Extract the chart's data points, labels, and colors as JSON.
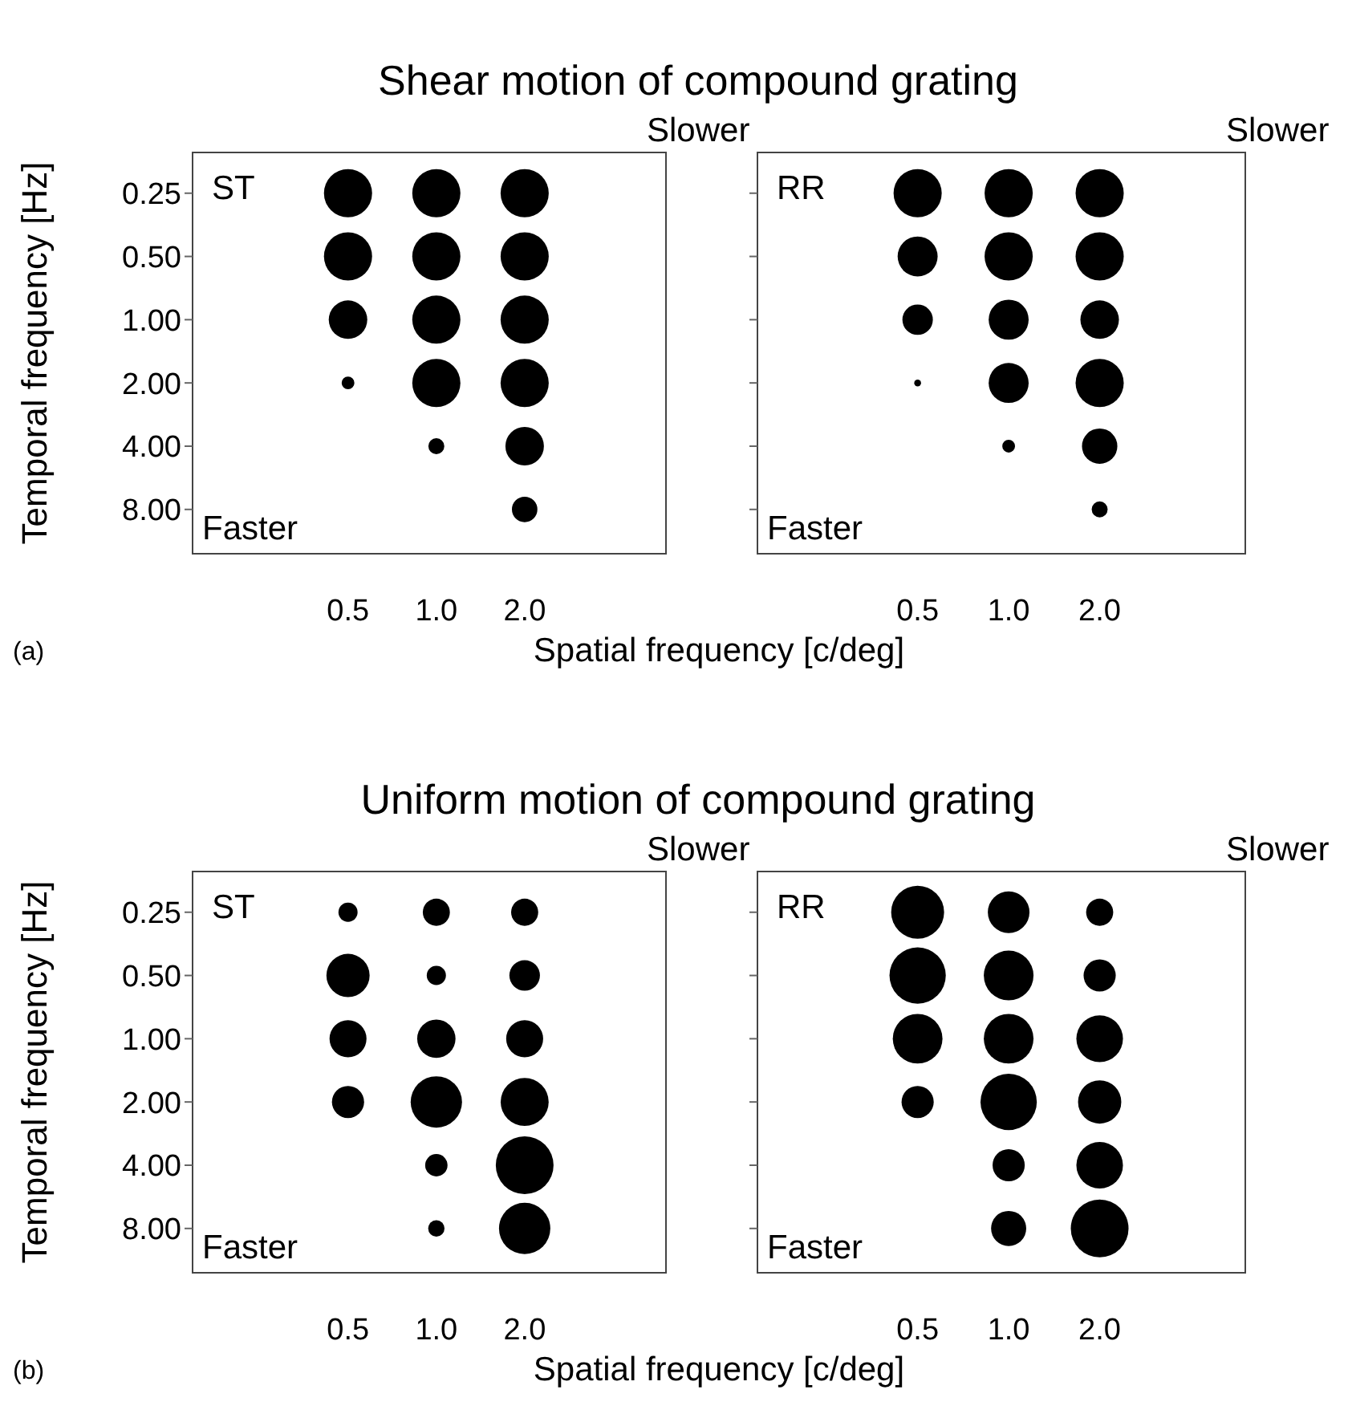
{
  "chart_data": [
    {
      "type": "bubble",
      "title": "Shear motion of compound grating",
      "xlabel": "Spatial frequency [c/deg]",
      "ylabel": "Temporal frequency [Hz]",
      "annotations": [
        "ST",
        "Slower",
        "Faster",
        "(a)"
      ],
      "categories": [
        "0.5",
        "1.0",
        "2.0"
      ],
      "log": "y",
      "ylim": [
        13,
        0.16
      ],
      "yticks": [
        {
          "value": 0.25,
          "label": "0.25"
        },
        {
          "value": 0.5,
          "label": "0.50"
        },
        {
          "value": 1,
          "label": "1.00"
        },
        {
          "value": 2,
          "label": "2.00"
        },
        {
          "value": 4,
          "label": "4.00"
        },
        {
          "value": 8,
          "label": "8.00"
        }
      ],
      "series": [
        {
          "color": "#000000",
          "x": [
            "0.5",
            "0.5",
            "0.5",
            "0.5",
            "1.0",
            "1.0",
            "1.0",
            "1.0",
            "1.0",
            "2.0",
            "2.0",
            "2.0",
            "2.0",
            "2.0",
            "2.0"
          ],
          "values": [
            0.25,
            0.5,
            1,
            2,
            0.25,
            0.5,
            1,
            2,
            4,
            0.25,
            0.5,
            1,
            2,
            4,
            8
          ],
          "sizes": [
            1,
            1,
            0.64,
            0.07,
            1,
            1,
            1,
            1,
            0.11,
            1,
            1,
            1,
            1,
            0.64,
            0.28
          ]
        }
      ]
    },
    {
      "type": "bubble",
      "annotations": [
        "RR",
        "Slower",
        "Faster"
      ],
      "categories": [
        "0.5",
        "1.0",
        "2.0"
      ],
      "log": "y",
      "ylim": [
        13,
        0.16
      ],
      "tick_labels": "x",
      "yticks": [
        {
          "value": 0.25,
          "label": null
        },
        {
          "value": 0.5,
          "label": null
        },
        {
          "value": 1,
          "label": null
        },
        {
          "value": 2,
          "label": null
        },
        {
          "value": 4,
          "label": null
        },
        {
          "value": 8,
          "label": null
        }
      ],
      "series": [
        {
          "color": "#000000",
          "x": [
            "0.5",
            "0.5",
            "0.5",
            "0.5",
            "1.0",
            "1.0",
            "1.0",
            "1.0",
            "1.0",
            "2.0",
            "2.0",
            "2.0",
            "2.0",
            "2.0",
            "2.0"
          ],
          "values": [
            0.25,
            0.5,
            1,
            2,
            0.25,
            0.5,
            1,
            2,
            4,
            0.25,
            0.5,
            1,
            2,
            4,
            8
          ],
          "sizes": [
            1,
            0.69,
            0.4,
            0.02,
            1,
            1,
            0.69,
            0.69,
            0.07,
            1,
            1,
            0.64,
            1,
            0.54,
            0.11
          ]
        }
      ]
    },
    {
      "type": "bubble",
      "title": "Uniform motion of compound grating",
      "xlabel": "Spatial frequency [c/deg]",
      "ylabel": "Temporal frequency [Hz]",
      "annotations": [
        "ST",
        "Slower",
        "Faster",
        "(b)"
      ],
      "categories": [
        "0.5",
        "1.0",
        "2.0"
      ],
      "log": "y",
      "ylim": [
        13,
        0.16
      ],
      "yticks": [
        {
          "value": 0.25,
          "label": "0.25"
        },
        {
          "value": 0.5,
          "label": "0.50"
        },
        {
          "value": 1,
          "label": "1.00"
        },
        {
          "value": 2,
          "label": "2.00"
        },
        {
          "value": 4,
          "label": "4.00"
        },
        {
          "value": 8,
          "label": "8.00"
        }
      ],
      "series": [
        {
          "color": "#000000",
          "x": [
            "0.5",
            "0.5",
            "0.5",
            "0.5",
            "1.0",
            "1.0",
            "1.0",
            "1.0",
            "1.0",
            "1.0",
            "2.0",
            "2.0",
            "2.0",
            "2.0",
            "2.0",
            "2.0"
          ],
          "values": [
            0.25,
            0.5,
            1,
            2,
            0.25,
            0.5,
            1,
            2,
            4,
            8,
            0.25,
            0.5,
            1,
            2,
            4,
            8
          ],
          "sizes": [
            0.11,
            0.56,
            0.41,
            0.31,
            0.22,
            0.11,
            0.44,
            0.79,
            0.15,
            0.08,
            0.22,
            0.28,
            0.41,
            0.69,
            1,
            0.79
          ]
        }
      ]
    },
    {
      "type": "bubble",
      "annotations": [
        "RR",
        "Slower",
        "Faster"
      ],
      "categories": [
        "0.5",
        "1.0",
        "2.0"
      ],
      "log": "y",
      "ylim": [
        13,
        0.16
      ],
      "tick_labels": "x",
      "yticks": [
        {
          "value": 0.25,
          "label": null
        },
        {
          "value": 0.5,
          "label": null
        },
        {
          "value": 1,
          "label": null
        },
        {
          "value": 2,
          "label": null
        },
        {
          "value": 4,
          "label": null
        },
        {
          "value": 8,
          "label": null
        }
      ],
      "series": [
        {
          "color": "#000000",
          "x": [
            "0.5",
            "0.5",
            "0.5",
            "0.5",
            "1.0",
            "1.0",
            "1.0",
            "1.0",
            "1.0",
            "1.0",
            "2.0",
            "2.0",
            "2.0",
            "2.0",
            "2.0",
            "2.0"
          ],
          "values": [
            0.25,
            0.5,
            1,
            2,
            0.25,
            0.5,
            1,
            2,
            4,
            8,
            0.25,
            0.5,
            1,
            2,
            4,
            8
          ],
          "sizes": [
            0.84,
            0.95,
            0.74,
            0.31,
            0.52,
            0.74,
            0.74,
            0.95,
            0.31,
            0.37,
            0.22,
            0.31,
            0.65,
            0.56,
            0.65,
            1
          ]
        }
      ]
    }
  ]
}
